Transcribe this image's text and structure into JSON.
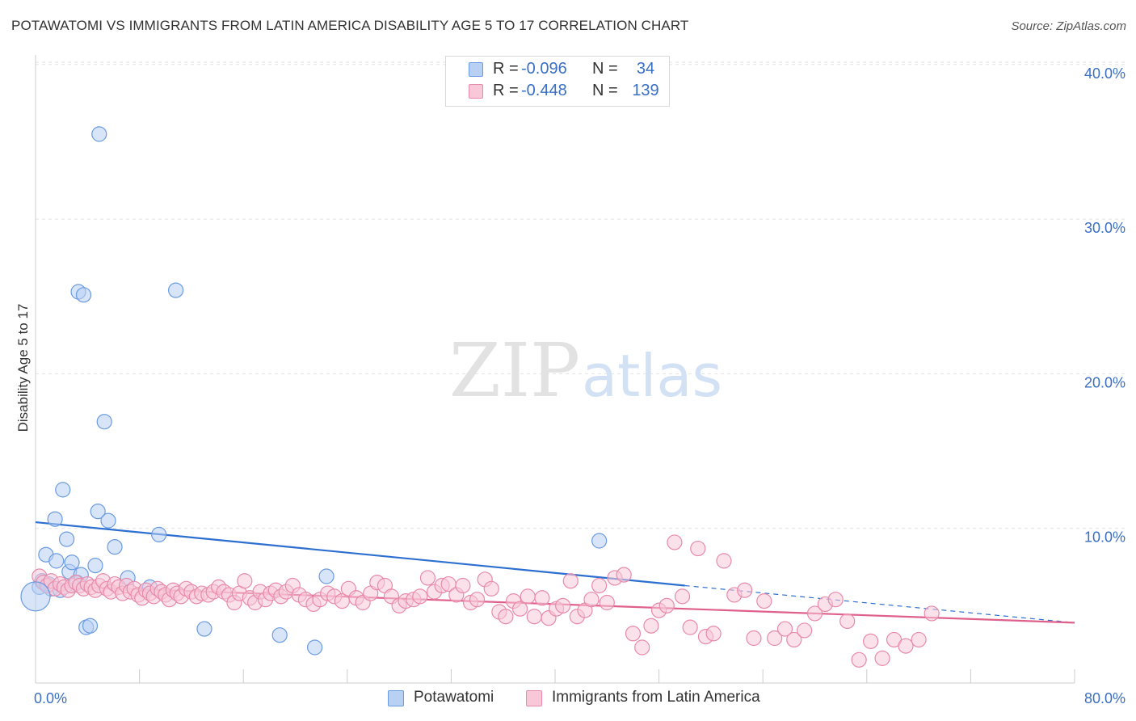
{
  "chart_data": {
    "type": "scatter",
    "title": "POTAWATOMI VS IMMIGRANTS FROM LATIN AMERICA DISABILITY AGE 5 TO 17 CORRELATION CHART",
    "source": "Source: ZipAtlas.com",
    "ylabel": "Disability Age 5 to 17",
    "xlabel": "",
    "xlim": [
      0,
      80
    ],
    "ylim": [
      0,
      40
    ],
    "x_tick_labels": [
      "0.0%",
      "80.0%"
    ],
    "y_ticks": [
      10,
      20,
      30,
      40
    ],
    "y_tick_labels": [
      "10.0%",
      "20.0%",
      "30.0%",
      "40.0%"
    ],
    "grid": true,
    "watermark": "ZIPatlas",
    "legend": [
      {
        "r_label": "R =",
        "r_value": "-0.096",
        "n_label": "N =",
        "n_value": "34"
      },
      {
        "r_label": "R =",
        "r_value": "-0.448",
        "n_label": "N =",
        "n_value": "139"
      }
    ],
    "series": [
      {
        "name": "Potawatomi",
        "color": "#6a9be0",
        "fill": "#b8d0f4",
        "trend": {
          "x0": 0,
          "y0": 10.4,
          "x1": 50,
          "y1": 6.3,
          "dashed_to_x": 80,
          "dashed_to_y": 3.9
        },
        "points": [
          [
            0.3,
            6.2
          ],
          [
            0.5,
            6.6
          ],
          [
            0.8,
            8.3
          ],
          [
            1.0,
            6.4
          ],
          [
            1.2,
            6.1
          ],
          [
            1.5,
            10.6
          ],
          [
            1.6,
            7.9
          ],
          [
            1.9,
            6.0
          ],
          [
            2.1,
            12.5
          ],
          [
            2.4,
            9.3
          ],
          [
            2.6,
            7.2
          ],
          [
            2.8,
            7.8
          ],
          [
            3.0,
            6.4
          ],
          [
            3.2,
            6.5
          ],
          [
            3.3,
            25.3
          ],
          [
            3.5,
            7.0
          ],
          [
            3.7,
            25.1
          ],
          [
            3.9,
            3.6
          ],
          [
            4.2,
            3.7
          ],
          [
            4.6,
            7.6
          ],
          [
            4.8,
            11.1
          ],
          [
            4.9,
            35.5
          ],
          [
            5.3,
            16.9
          ],
          [
            5.6,
            10.5
          ],
          [
            6.1,
            8.8
          ],
          [
            7.1,
            6.8
          ],
          [
            8.8,
            6.2
          ],
          [
            9.5,
            9.6
          ],
          [
            10.8,
            25.4
          ],
          [
            13.0,
            3.5
          ],
          [
            18.8,
            3.1
          ],
          [
            21.5,
            2.3
          ],
          [
            22.4,
            6.9
          ],
          [
            43.4,
            9.2
          ]
        ]
      },
      {
        "name": "Immigrants from Latin America",
        "color": "#e88aaa",
        "fill": "#f8c8d8",
        "trend": {
          "x0": 0,
          "y0": 6.3,
          "x1": 80,
          "y1": 3.9
        },
        "points": [
          [
            0.3,
            6.9
          ],
          [
            0.6,
            6.5
          ],
          [
            0.9,
            6.3
          ],
          [
            1.2,
            6.6
          ],
          [
            1.5,
            6.1
          ],
          [
            1.9,
            6.4
          ],
          [
            2.2,
            6.2
          ],
          [
            2.5,
            6.0
          ],
          [
            2.8,
            6.3
          ],
          [
            3.1,
            6.5
          ],
          [
            3.4,
            6.3
          ],
          [
            3.7,
            6.1
          ],
          [
            4.0,
            6.4
          ],
          [
            4.3,
            6.2
          ],
          [
            4.6,
            6.0
          ],
          [
            4.9,
            6.3
          ],
          [
            5.2,
            6.6
          ],
          [
            5.5,
            6.1
          ],
          [
            5.8,
            5.9
          ],
          [
            6.1,
            6.4
          ],
          [
            6.4,
            6.2
          ],
          [
            6.7,
            5.8
          ],
          [
            7.0,
            6.3
          ],
          [
            7.3,
            5.9
          ],
          [
            7.6,
            6.1
          ],
          [
            7.9,
            5.7
          ],
          [
            8.2,
            5.5
          ],
          [
            8.5,
            6.0
          ],
          [
            8.8,
            5.8
          ],
          [
            9.1,
            5.6
          ],
          [
            9.4,
            6.1
          ],
          [
            9.7,
            5.9
          ],
          [
            10.0,
            5.7
          ],
          [
            10.3,
            5.4
          ],
          [
            10.6,
            6.0
          ],
          [
            10.9,
            5.8
          ],
          [
            11.2,
            5.6
          ],
          [
            11.6,
            6.1
          ],
          [
            12.0,
            5.9
          ],
          [
            12.4,
            5.6
          ],
          [
            12.8,
            5.8
          ],
          [
            13.3,
            5.7
          ],
          [
            13.7,
            5.9
          ],
          [
            14.1,
            6.2
          ],
          [
            14.5,
            5.9
          ],
          [
            14.9,
            5.7
          ],
          [
            15.3,
            5.2
          ],
          [
            15.7,
            5.8
          ],
          [
            16.1,
            6.6
          ],
          [
            16.5,
            5.5
          ],
          [
            16.9,
            5.2
          ],
          [
            17.3,
            5.9
          ],
          [
            17.7,
            5.4
          ],
          [
            18.1,
            5.8
          ],
          [
            18.5,
            6.0
          ],
          [
            18.9,
            5.6
          ],
          [
            19.3,
            5.9
          ],
          [
            19.8,
            6.3
          ],
          [
            20.3,
            5.7
          ],
          [
            20.8,
            5.4
          ],
          [
            21.4,
            5.1
          ],
          [
            21.9,
            5.4
          ],
          [
            22.5,
            5.8
          ],
          [
            23.0,
            5.6
          ],
          [
            23.6,
            5.3
          ],
          [
            24.1,
            6.1
          ],
          [
            24.7,
            5.5
          ],
          [
            25.2,
            5.2
          ],
          [
            25.8,
            5.8
          ],
          [
            26.3,
            6.5
          ],
          [
            26.9,
            6.3
          ],
          [
            27.4,
            5.6
          ],
          [
            28.0,
            5.0
          ],
          [
            28.5,
            5.3
          ],
          [
            29.1,
            5.4
          ],
          [
            29.6,
            5.6
          ],
          [
            30.2,
            6.8
          ],
          [
            30.7,
            5.9
          ],
          [
            31.3,
            6.3
          ],
          [
            31.8,
            6.4
          ],
          [
            32.4,
            5.7
          ],
          [
            32.9,
            6.3
          ],
          [
            33.5,
            5.2
          ],
          [
            34.0,
            5.4
          ],
          [
            34.6,
            6.7
          ],
          [
            35.1,
            6.1
          ],
          [
            35.7,
            4.6
          ],
          [
            36.2,
            4.3
          ],
          [
            36.8,
            5.3
          ],
          [
            37.3,
            4.8
          ],
          [
            37.9,
            5.6
          ],
          [
            38.4,
            4.3
          ],
          [
            39.0,
            5.5
          ],
          [
            39.5,
            4.2
          ],
          [
            40.1,
            4.8
          ],
          [
            40.6,
            5.0
          ],
          [
            41.2,
            6.6
          ],
          [
            41.7,
            4.3
          ],
          [
            42.3,
            4.7
          ],
          [
            42.8,
            5.4
          ],
          [
            43.4,
            6.3
          ],
          [
            44.0,
            5.2
          ],
          [
            44.6,
            6.8
          ],
          [
            45.3,
            7.0
          ],
          [
            46.0,
            3.2
          ],
          [
            46.7,
            2.3
          ],
          [
            47.4,
            3.7
          ],
          [
            48.0,
            4.7
          ],
          [
            48.6,
            5.0
          ],
          [
            49.2,
            9.1
          ],
          [
            49.8,
            5.6
          ],
          [
            50.4,
            3.6
          ],
          [
            51.0,
            8.7
          ],
          [
            51.6,
            3.0
          ],
          [
            52.2,
            3.2
          ],
          [
            53.0,
            7.9
          ],
          [
            53.8,
            5.7
          ],
          [
            54.6,
            6.0
          ],
          [
            55.3,
            2.9
          ],
          [
            56.1,
            5.3
          ],
          [
            56.9,
            2.9
          ],
          [
            57.7,
            3.5
          ],
          [
            58.4,
            2.8
          ],
          [
            59.2,
            3.4
          ],
          [
            60.0,
            4.5
          ],
          [
            60.8,
            5.1
          ],
          [
            61.6,
            5.4
          ],
          [
            62.5,
            4.0
          ],
          [
            63.4,
            1.5
          ],
          [
            64.3,
            2.7
          ],
          [
            65.2,
            1.6
          ],
          [
            66.1,
            2.8
          ],
          [
            67.0,
            2.4
          ],
          [
            68.0,
            2.8
          ],
          [
            69.0,
            4.5
          ]
        ]
      }
    ]
  },
  "bottom_legend": [
    {
      "label": "Potawatomi"
    },
    {
      "label": "Immigrants from Latin America"
    }
  ]
}
